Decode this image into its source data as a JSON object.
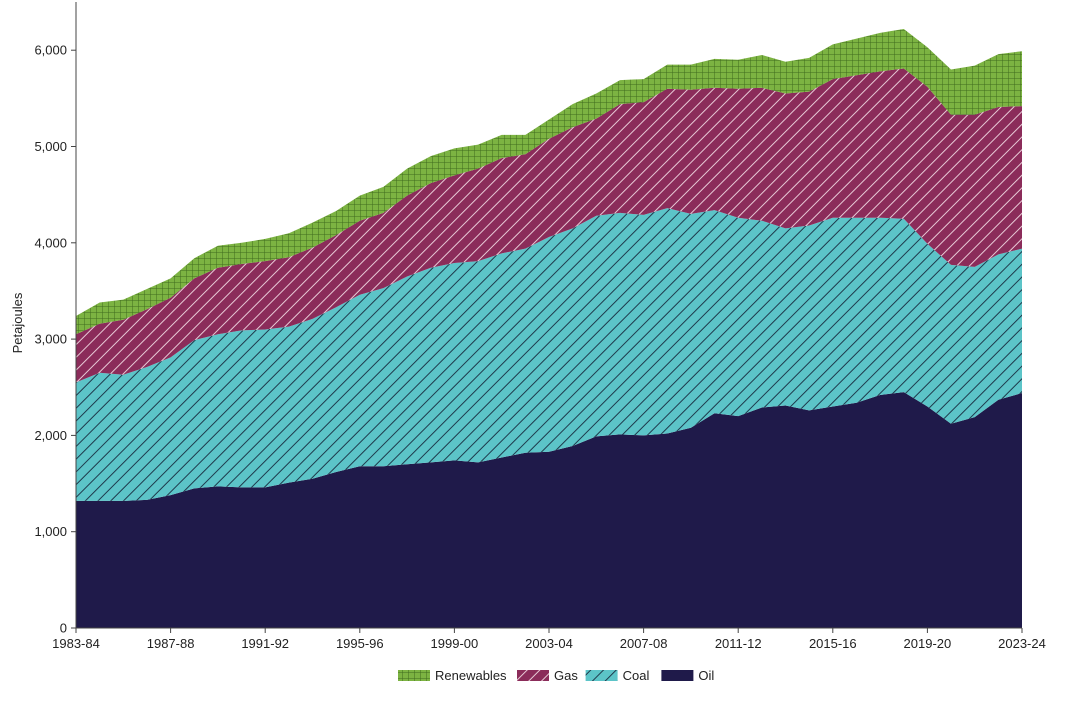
{
  "chart_data": {
    "type": "area",
    "stacked": true,
    "title": "",
    "xlabel": "",
    "ylabel": "Petajoules",
    "ylim": [
      0,
      6500
    ],
    "yticks": [
      0,
      1000,
      2000,
      3000,
      4000,
      5000,
      6000
    ],
    "ytick_labels": [
      "0",
      "1,000",
      "2,000",
      "3,000",
      "4,000",
      "5,000",
      "6,000"
    ],
    "x": [
      "1983-84",
      "1984-85",
      "1985-86",
      "1986-87",
      "1987-88",
      "1988-89",
      "1989-90",
      "1990-91",
      "1991-92",
      "1992-93",
      "1993-94",
      "1994-95",
      "1995-96",
      "1996-97",
      "1997-98",
      "1998-99",
      "1999-00",
      "2000-01",
      "2001-02",
      "2002-03",
      "2003-04",
      "2004-05",
      "2005-06",
      "2006-07",
      "2007-08",
      "2008-09",
      "2009-10",
      "2010-11",
      "2011-12",
      "2012-13",
      "2013-14",
      "2014-15",
      "2015-16",
      "2016-17",
      "2017-18",
      "2018-19",
      "2019-20",
      "2020-21",
      "2021-22",
      "2022-23",
      "2023-24"
    ],
    "xtick_labels": [
      "1983-84",
      "1987-88",
      "1991-92",
      "1995-96",
      "1999-00",
      "2003-04",
      "2007-08",
      "2011-12",
      "2015-16",
      "2019-20",
      "2023-24"
    ],
    "grid": false,
    "legend_position": "bottom",
    "series": [
      {
        "name": "Oil",
        "color": "#1f1a4a",
        "pattern": "solid",
        "values": [
          1320,
          1320,
          1320,
          1330,
          1380,
          1450,
          1470,
          1460,
          1460,
          1510,
          1550,
          1620,
          1680,
          1680,
          1700,
          1720,
          1740,
          1720,
          1770,
          1820,
          1830,
          1890,
          1990,
          2010,
          2000,
          2020,
          2080,
          2230,
          2200,
          2290,
          2310,
          2260,
          2300,
          2340,
          2420,
          2450,
          2300,
          2120,
          2190,
          2370,
          2440
        ]
      },
      {
        "name": "Coal",
        "color": "#5cc4c8",
        "pattern": "diagonal-hatch",
        "values": [
          1230,
          1330,
          1310,
          1380,
          1430,
          1540,
          1580,
          1630,
          1640,
          1620,
          1660,
          1710,
          1780,
          1850,
          1950,
          2020,
          2050,
          2090,
          2120,
          2120,
          2230,
          2260,
          2290,
          2300,
          2290,
          2340,
          2220,
          2110,
          2060,
          1940,
          1840,
          1920,
          1960,
          1920,
          1840,
          1800,
          1690,
          1650,
          1560,
          1510,
          1500
        ]
      },
      {
        "name": "Gas",
        "color": "#8b2c5a",
        "pattern": "diagonal-hatch",
        "values": [
          500,
          510,
          570,
          600,
          620,
          640,
          690,
          690,
          710,
          720,
          740,
          750,
          770,
          780,
          840,
          880,
          910,
          960,
          990,
          980,
          1020,
          1050,
          1010,
          1130,
          1170,
          1240,
          1290,
          1270,
          1340,
          1380,
          1400,
          1390,
          1440,
          1480,
          1520,
          1560,
          1630,
          1560,
          1580,
          1530,
          1480
        ]
      },
      {
        "name": "Renewables",
        "color": "#7cb342",
        "pattern": "grid-hatch",
        "values": [
          190,
          220,
          210,
          210,
          200,
          210,
          230,
          220,
          230,
          250,
          260,
          250,
          260,
          270,
          280,
          280,
          280,
          250,
          240,
          200,
          200,
          240,
          260,
          250,
          240,
          250,
          260,
          300,
          300,
          340,
          330,
          350,
          360,
          380,
          400,
          410,
          410,
          470,
          510,
          550,
          570
        ]
      }
    ]
  }
}
